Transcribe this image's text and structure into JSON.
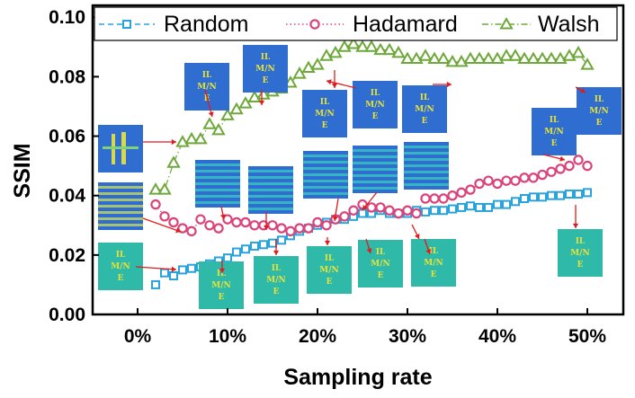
{
  "chart_data": {
    "type": "scatter",
    "title": "",
    "xlabel": "Sampling rate",
    "ylabel": "SSIM",
    "x_tick_labels": [
      "0%",
      "10%",
      "20%",
      "30%",
      "40%",
      "50%"
    ],
    "x_ticks": [
      0,
      10,
      20,
      30,
      40,
      50
    ],
    "y_tick_labels": [
      "0.00",
      "0.02",
      "0.04",
      "0.06",
      "0.08",
      "0.10"
    ],
    "y_ticks": [
      0,
      0.02,
      0.04,
      0.06,
      0.08,
      0.1
    ],
    "xlim": [
      -5,
      54
    ],
    "ylim": [
      0,
      0.104
    ],
    "legend_position": "top",
    "image_label": "IL M/N E",
    "series": [
      {
        "name": "Random",
        "color": "#2aa3db",
        "marker": "square",
        "line": "dashed",
        "x": [
          2,
          3,
          4,
          5,
          6,
          7,
          8,
          9,
          10,
          11,
          12,
          13,
          14,
          15,
          16,
          17,
          18,
          19,
          20,
          21,
          22,
          23,
          24,
          25,
          26,
          27,
          28,
          29,
          30,
          31,
          32,
          33,
          34,
          35,
          36,
          37,
          38,
          39,
          40,
          41,
          42,
          43,
          44,
          45,
          46,
          47,
          48,
          49,
          50
        ],
        "values": [
          0.01,
          0.014,
          0.013,
          0.015,
          0.0155,
          0.016,
          0.017,
          0.018,
          0.019,
          0.021,
          0.022,
          0.023,
          0.0235,
          0.024,
          0.025,
          0.0265,
          0.028,
          0.029,
          0.03,
          0.031,
          0.032,
          0.032,
          0.033,
          0.034,
          0.034,
          0.035,
          0.034,
          0.034,
          0.034,
          0.035,
          0.0345,
          0.035,
          0.035,
          0.0355,
          0.036,
          0.0365,
          0.036,
          0.036,
          0.037,
          0.037,
          0.038,
          0.039,
          0.0395,
          0.0395,
          0.04,
          0.04,
          0.0405,
          0.0405,
          0.041
        ]
      },
      {
        "name": "Hadamard",
        "color": "#d9437a",
        "marker": "circle",
        "line": "dotted",
        "x": [
          2,
          3,
          4,
          5,
          6,
          7,
          8,
          9,
          10,
          11,
          12,
          13,
          14,
          15,
          16,
          17,
          18,
          19,
          20,
          21,
          22,
          23,
          24,
          25,
          26,
          27,
          28,
          29,
          30,
          31,
          32,
          33,
          34,
          35,
          36,
          37,
          38,
          39,
          40,
          41,
          42,
          43,
          44,
          45,
          46,
          47,
          48,
          49,
          50
        ],
        "values": [
          0.037,
          0.033,
          0.031,
          0.029,
          0.028,
          0.032,
          0.03,
          0.029,
          0.032,
          0.031,
          0.031,
          0.03,
          0.03,
          0.03,
          0.029,
          0.028,
          0.029,
          0.029,
          0.031,
          0.03,
          0.032,
          0.033,
          0.035,
          0.037,
          0.036,
          0.036,
          0.035,
          0.034,
          0.035,
          0.034,
          0.039,
          0.039,
          0.039,
          0.04,
          0.041,
          0.042,
          0.044,
          0.045,
          0.044,
          0.045,
          0.045,
          0.046,
          0.046,
          0.047,
          0.048,
          0.049,
          0.05,
          0.052,
          0.05
        ]
      },
      {
        "name": "Walsh",
        "color": "#6fa83a",
        "marker": "triangle",
        "line": "dashdot",
        "x": [
          2,
          3,
          4,
          5,
          6,
          7,
          8,
          9,
          10,
          11,
          12,
          13,
          14,
          15,
          16,
          17,
          18,
          19,
          20,
          21,
          22,
          23,
          24,
          25,
          26,
          27,
          28,
          29,
          30,
          31,
          32,
          33,
          34,
          35,
          36,
          37,
          38,
          39,
          40,
          41,
          42,
          43,
          44,
          45,
          46,
          47,
          48,
          49,
          50
        ],
        "values": [
          0.042,
          0.042,
          0.051,
          0.058,
          0.059,
          0.059,
          0.064,
          0.062,
          0.067,
          0.069,
          0.071,
          0.073,
          0.074,
          0.075,
          0.076,
          0.078,
          0.081,
          0.083,
          0.084,
          0.087,
          0.088,
          0.09,
          0.091,
          0.09,
          0.09,
          0.089,
          0.089,
          0.088,
          0.086,
          0.086,
          0.087,
          0.086,
          0.086,
          0.085,
          0.085,
          0.086,
          0.086,
          0.086,
          0.086,
          0.087,
          0.087,
          0.086,
          0.086,
          0.086,
          0.086,
          0.086,
          0.087,
          0.088,
          0.084
        ]
      }
    ]
  }
}
